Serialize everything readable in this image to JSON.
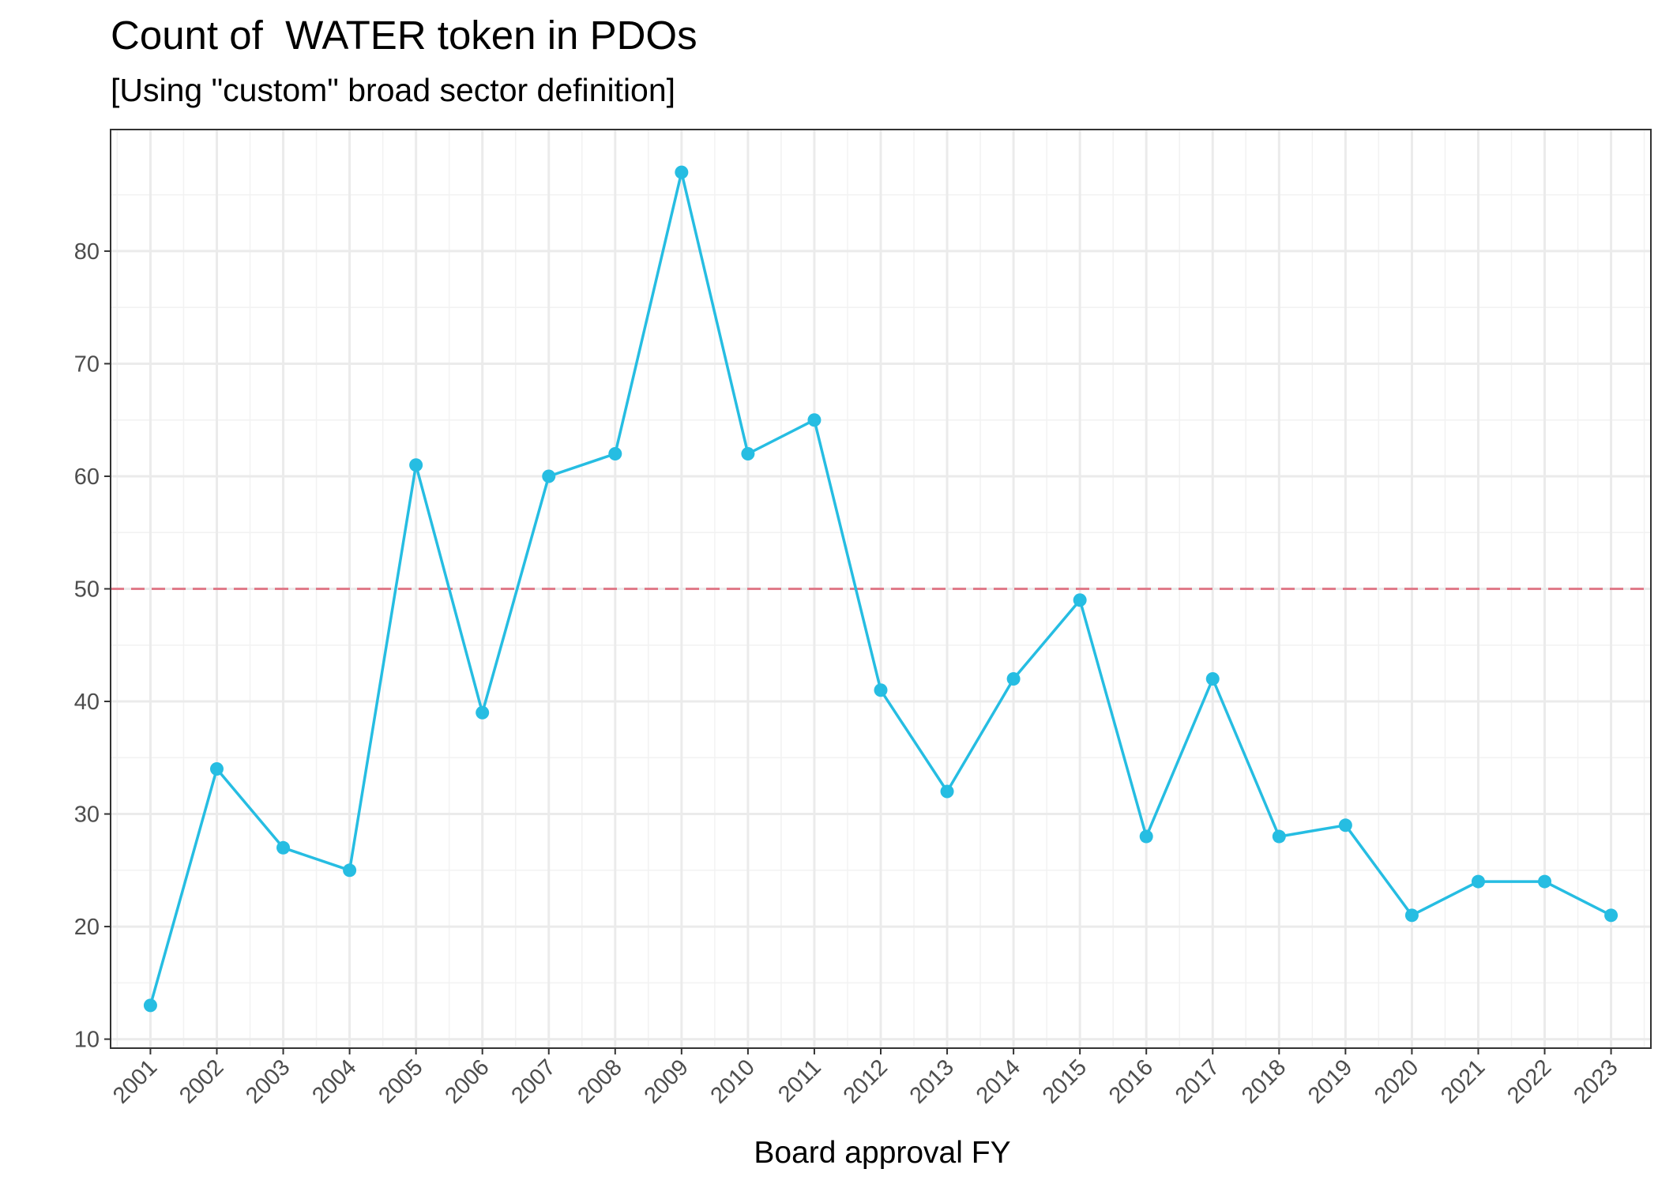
{
  "chart_data": {
    "type": "line",
    "title": "Count of  WATER token in PDOs",
    "subtitle": "[Using \"custom\" broad sector definition]",
    "xlabel": "Board approval FY",
    "ylabel": "",
    "categories": [
      "2001",
      "2002",
      "2003",
      "2004",
      "2005",
      "2006",
      "2007",
      "2008",
      "2009",
      "2010",
      "2011",
      "2012",
      "2013",
      "2014",
      "2015",
      "2016",
      "2017",
      "2018",
      "2019",
      "2020",
      "2021",
      "2022",
      "2023"
    ],
    "values": [
      13,
      34,
      27,
      25,
      61,
      39,
      60,
      62,
      87,
      62,
      65,
      41,
      32,
      42,
      49,
      28,
      42,
      28,
      29,
      21,
      24,
      24,
      21
    ],
    "ylim": [
      9.2,
      90.8
    ],
    "yticks": [
      "10",
      "20",
      "30",
      "40",
      "50",
      "60",
      "70",
      "80"
    ],
    "reference_line": {
      "value": 50,
      "style": "dashed",
      "color": "#e07b8a"
    },
    "series_color": "#26bde2",
    "grid": true,
    "legend": "none"
  }
}
